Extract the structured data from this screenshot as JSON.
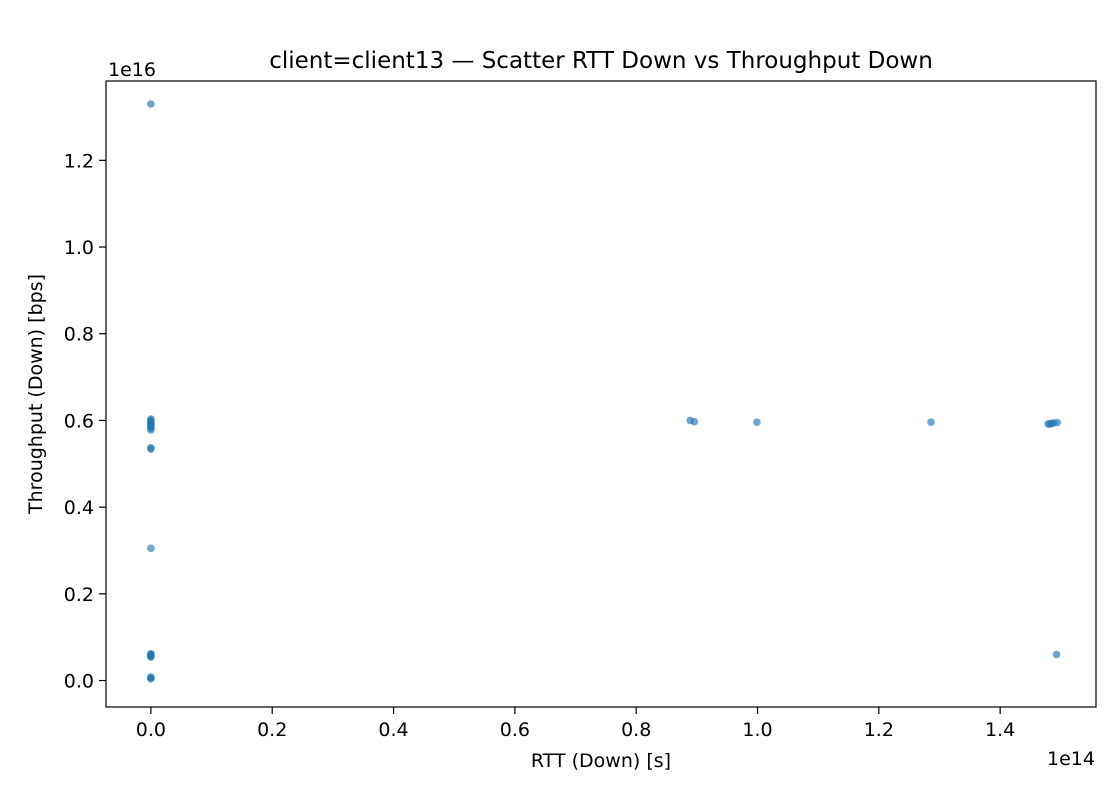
{
  "chart_data": {
    "type": "scatter",
    "title": "client=client13 — Scatter RTT Down vs Throughput Down",
    "xlabel": "RTT (Down) [s]",
    "ylabel": "Throughput (Down) [bps]",
    "x_offset_label": "1e14",
    "y_offset_label": "1e16",
    "x_scale": 100000000000000.0,
    "y_scale": 1e+16,
    "xlim": [
      -0.074,
      1.558
    ],
    "ylim": [
      -0.061,
      1.383
    ],
    "x_ticks": [
      0.0,
      0.2,
      0.4,
      0.6,
      0.8,
      1.0,
      1.2,
      1.4
    ],
    "x_tick_labels": [
      "0.0",
      "0.2",
      "0.4",
      "0.6",
      "0.8",
      "1.0",
      "1.2",
      "1.4"
    ],
    "y_ticks": [
      0.0,
      0.2,
      0.4,
      0.6,
      0.8,
      1.0,
      1.2
    ],
    "y_tick_labels": [
      "0.0",
      "0.2",
      "0.4",
      "0.6",
      "0.8",
      "1.0",
      "1.2"
    ],
    "grid": false,
    "point_color": "#1f77b4",
    "x_units_note": "x values in units of 1e14 s, y values in units of 1e16 bps",
    "points": [
      {
        "x": 0.0,
        "y": 1.33
      },
      {
        "x": 0.0,
        "y": 0.603
      },
      {
        "x": 0.0,
        "y": 0.6
      },
      {
        "x": 0.0,
        "y": 0.597
      },
      {
        "x": 0.0,
        "y": 0.594
      },
      {
        "x": 0.0,
        "y": 0.591
      },
      {
        "x": 0.0,
        "y": 0.588
      },
      {
        "x": 0.0,
        "y": 0.585
      },
      {
        "x": 0.0,
        "y": 0.582
      },
      {
        "x": 0.0,
        "y": 0.578
      },
      {
        "x": 0.0,
        "y": 0.537
      },
      {
        "x": 0.0,
        "y": 0.534
      },
      {
        "x": 0.0,
        "y": 0.305
      },
      {
        "x": 0.0,
        "y": 0.062
      },
      {
        "x": 0.0,
        "y": 0.06
      },
      {
        "x": 0.0,
        "y": 0.058
      },
      {
        "x": 0.0,
        "y": 0.056
      },
      {
        "x": 0.0,
        "y": 0.054
      },
      {
        "x": 0.0,
        "y": 0.008
      },
      {
        "x": 0.0,
        "y": 0.006
      },
      {
        "x": 0.0,
        "y": 0.004
      },
      {
        "x": 0.889,
        "y": 0.6
      },
      {
        "x": 0.896,
        "y": 0.597
      },
      {
        "x": 0.999,
        "y": 0.596
      },
      {
        "x": 1.286,
        "y": 0.596
      },
      {
        "x": 1.479,
        "y": 0.592
      },
      {
        "x": 1.482,
        "y": 0.592
      },
      {
        "x": 1.485,
        "y": 0.593
      },
      {
        "x": 1.488,
        "y": 0.594
      },
      {
        "x": 1.494,
        "y": 0.595
      },
      {
        "x": 1.493,
        "y": 0.06
      }
    ]
  }
}
